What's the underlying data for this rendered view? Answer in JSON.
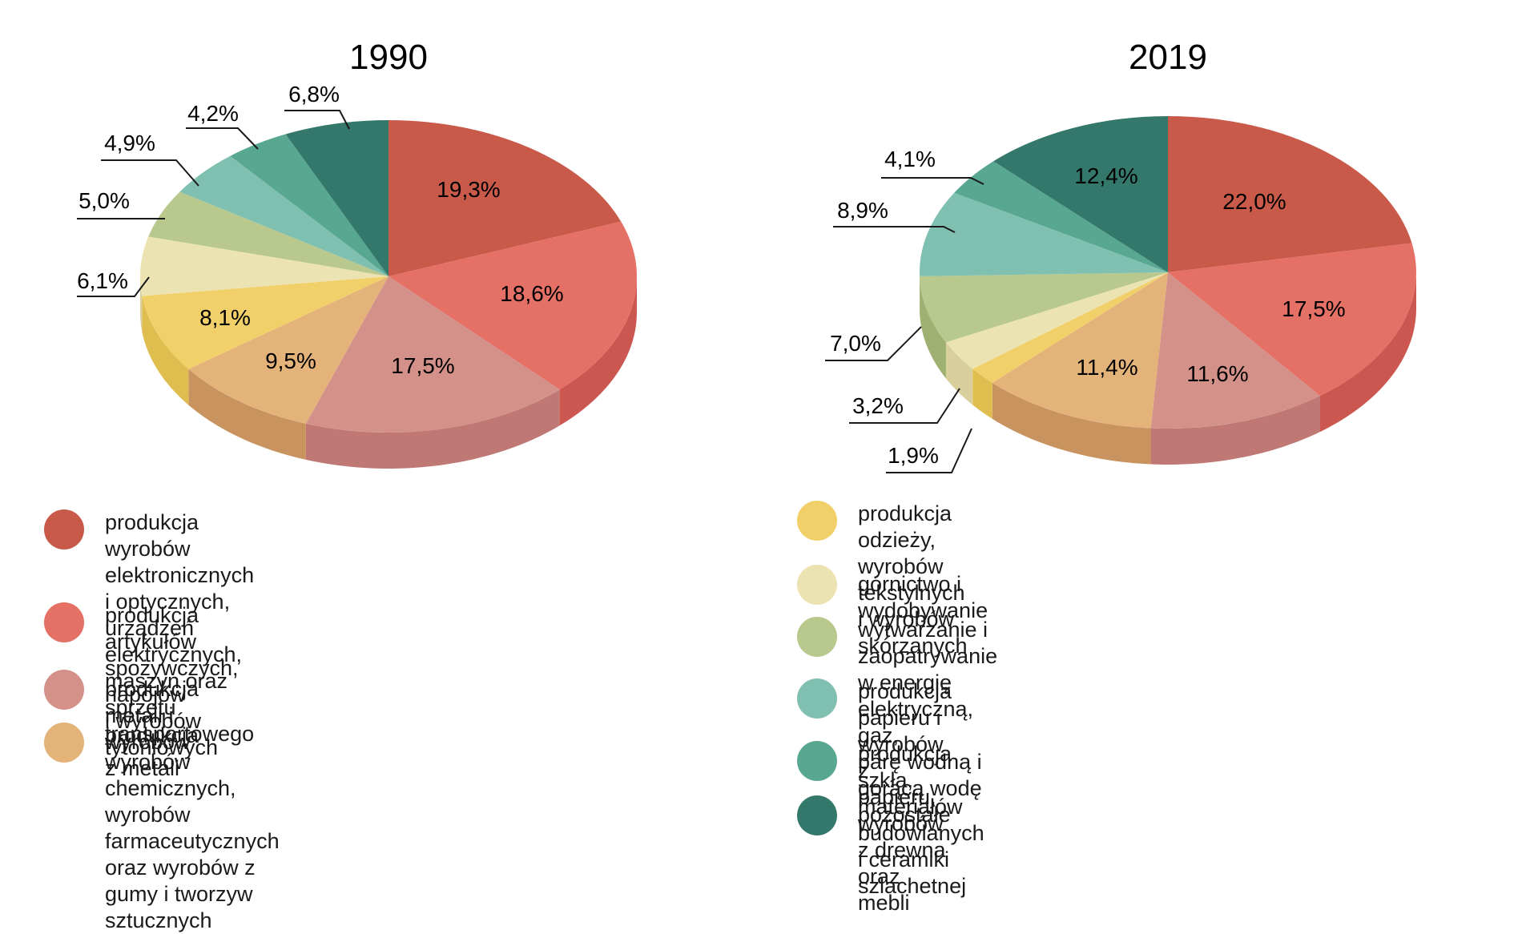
{
  "chart_data": [
    {
      "type": "pie",
      "title": "1990",
      "categories": [
        "produkcja wyrobów elektronicznych i optycznych, urządzeń elektrycznych, maszyn oraz sprzętu transportowego",
        "produkcja artykułów spożywczych, napojów i wyrobów tytoniowych",
        "produkcja metali i wyrobów z metali",
        "produkcja wyrobów chemicznych, wyrobów farmaceutycznych oraz wyrobów z gumy i tworzyw sztucznych",
        "produkcja odzieży, wyrobów tekstylnych i wyrobów skórzanych",
        "górnictwo i wydobywanie",
        "wytwarzanie i zaopatrywanie w energię elektryczną, gaz, parę wodną i gorącą wodę",
        "produkcja papieru i wyrobów z papieru, wyrobów z drewna oraz mebli",
        "produkcja szkła, materiałów budowlanych i ceramiki szlachetnej",
        "pozostałe"
      ],
      "values": [
        19.3,
        18.6,
        17.5,
        9.5,
        8.1,
        6.1,
        5.0,
        4.9,
        4.2,
        6.8
      ],
      "labels": [
        "19,3%",
        "18,6%",
        "17,5%",
        "9,5%",
        "8,1%",
        "6,1%",
        "5,0%",
        "4,9%",
        "4,2%",
        "6,8%"
      ],
      "unit": "%"
    },
    {
      "type": "pie",
      "title": "2019",
      "categories": [
        "produkcja wyrobów elektronicznych i optycznych, urządzeń elektrycznych, maszyn oraz sprzętu transportowego",
        "produkcja artykułów spożywczych, napojów i wyrobów tytoniowych",
        "produkcja metali i wyrobów z metali",
        "produkcja wyrobów chemicznych, wyrobów farmaceutycznych oraz wyrobów z gumy i tworzyw sztucznych",
        "produkcja odzieży, wyrobów tekstylnych i wyrobów skórzanych",
        "górnictwo i wydobywanie",
        "wytwarzanie i zaopatrywanie w energię elektryczną, gaz, parę wodną i gorącą wodę",
        "produkcja papieru i wyrobów z papieru, wyrobów z drewna oraz mebli",
        "produkcja szkła, materiałów budowlanych i ceramiki szlachetnej",
        "pozostałe"
      ],
      "values": [
        22.0,
        17.5,
        11.6,
        11.4,
        1.9,
        3.2,
        7.0,
        8.9,
        4.1,
        12.4
      ],
      "labels": [
        "22,0%",
        "17,5%",
        "11,6%",
        "11,4%",
        "1,9%",
        "3,2%",
        "7,0%",
        "8,9%",
        "4,1%",
        "12,4%"
      ],
      "unit": "%"
    }
  ],
  "colors": [
    "#c95a4a",
    "#e47066",
    "#d4918a",
    "#e4b37a",
    "#f1d06a",
    "#ece3b3",
    "#b9c98e",
    "#80c0b1",
    "#58a791",
    "#33786a"
  ],
  "side_colors": [
    "#b84a3e",
    "#cc5650",
    "#bf7873",
    "#c9935f",
    "#dfbd4e",
    "#d8cf9d",
    "#9fb172",
    "#66a597",
    "#468c79",
    "#285f54"
  ],
  "legend": {
    "left": [
      {
        "color_index": 0,
        "text": [
          "produkcja wyrobów elektronicznych i optycznych,",
          "urządzeń elektrycznych, maszyn oraz sprzętu",
          "transportowego"
        ]
      },
      {
        "color_index": 1,
        "text": [
          "produkcja artykułów spożywczych, napojów",
          "i wyrobów tytoniowych"
        ]
      },
      {
        "color_index": 2,
        "text": [
          "produkcja metali i wyrobów z metali"
        ]
      },
      {
        "color_index": 3,
        "text": [
          "produkcja wyrobów chemicznych, wyrobów",
          "farmaceutycznych oraz wyrobów z gumy i tworzyw",
          "sztucznych"
        ]
      }
    ],
    "right": [
      {
        "color_index": 4,
        "text": [
          "produkcja odzieży, wyrobów tekstylnych i wyrobów",
          "skórzanych"
        ]
      },
      {
        "color_index": 5,
        "text": [
          "górnictwo i wydobywanie"
        ]
      },
      {
        "color_index": 6,
        "text": [
          "wytwarzanie i zaopatrywanie w energię elektryczną, gaz,",
          "parę wodną i gorącą wodę"
        ]
      },
      {
        "color_index": 7,
        "text": [
          "produkcja papieru i wyrobów z papieru, wyrobów",
          "z drewna oraz mebli"
        ]
      },
      {
        "color_index": 8,
        "text": [
          "produkcja szkła, materiałów budowlanych i ceramiki",
          "szlachetnej"
        ]
      },
      {
        "color_index": 9,
        "text": [
          "pozostałe"
        ]
      }
    ]
  }
}
